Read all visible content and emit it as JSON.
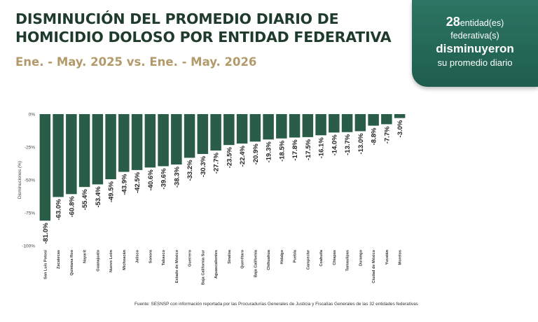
{
  "header": {
    "title": "DISMINUCIÓN DEL PROMEDIO DIARIO DE HOMICIDIO DOLOSO POR ENTIDAD FEDERATIVA",
    "subtitle": "Ene. - May. 2025 vs. Ene. - May. 2026"
  },
  "callout": {
    "count": "28",
    "line1": "entidad(es)",
    "line2": "federativa(s)",
    "line3": "disminuyeron",
    "line4": "su promedio diario"
  },
  "colors": {
    "bar": "#2a5d47",
    "title": "#1f3b2c",
    "subtitle": "#b39a6a",
    "callout": "#2d7564"
  },
  "chart_data": {
    "type": "bar",
    "ylabel": "Disminuciones (%)",
    "ylim": [
      -100,
      0
    ],
    "yticks": [
      0,
      -25,
      -50,
      -75,
      -100
    ],
    "ytick_labels": [
      "0%",
      "-25%",
      "-50%",
      "-75%",
      "-100%"
    ],
    "categories": [
      "San Luis Potosí",
      "Zacatecas",
      "Quintana Roo",
      "Nayarit",
      "Guanajuato",
      "Nuevo León",
      "Michoacán",
      "Jalisco",
      "Sonora",
      "Tabasco",
      "Estado de México",
      "Guerrero",
      "Baja California Sur",
      "Aguascalientes",
      "Sinaloa",
      "Querétaro",
      "Baja California",
      "Chihuahua",
      "Hidalgo",
      "Puebla",
      "Campeche",
      "Coahuila",
      "Chiapas",
      "Tamaulipas",
      "Durango",
      "Ciudad de México",
      "Yucatán",
      "Morelos"
    ],
    "values": [
      -81.0,
      -63.0,
      -60.8,
      -55.4,
      -53.4,
      -49.5,
      -43.9,
      -42.5,
      -40.6,
      -39.6,
      -38.3,
      -33.2,
      -30.3,
      -27.7,
      -23.5,
      -22.4,
      -20.9,
      -19.3,
      -18.5,
      -17.8,
      -17.5,
      -16.1,
      -14.0,
      -13.7,
      -13.0,
      -8.8,
      -7.7,
      -3.0
    ],
    "labels": [
      "-81.0%",
      "-63.0%",
      "-60.8%",
      "-55.4%",
      "-53.4%",
      "-49.5%",
      "-43.9%",
      "-42.5%",
      "-40.6%",
      "-39.6%",
      "-38.3%",
      "-33.2%",
      "-30.3%",
      "-27.7%",
      "-23.5%",
      "-22.4%",
      "-20.9%",
      "-19.3%",
      "-18.5%",
      "-17.8%",
      "-17.5%",
      "-16.1%",
      "-14.0%",
      "-13.7%",
      "-13.0%",
      "-8.8%",
      "-7.7%",
      "-3.0%"
    ]
  },
  "footer": {
    "source": "Fuente: SESNSP con información reportada por las Procuradurías Generales de Justicia y Fiscalías Generales de las 32 entidades federativas"
  }
}
